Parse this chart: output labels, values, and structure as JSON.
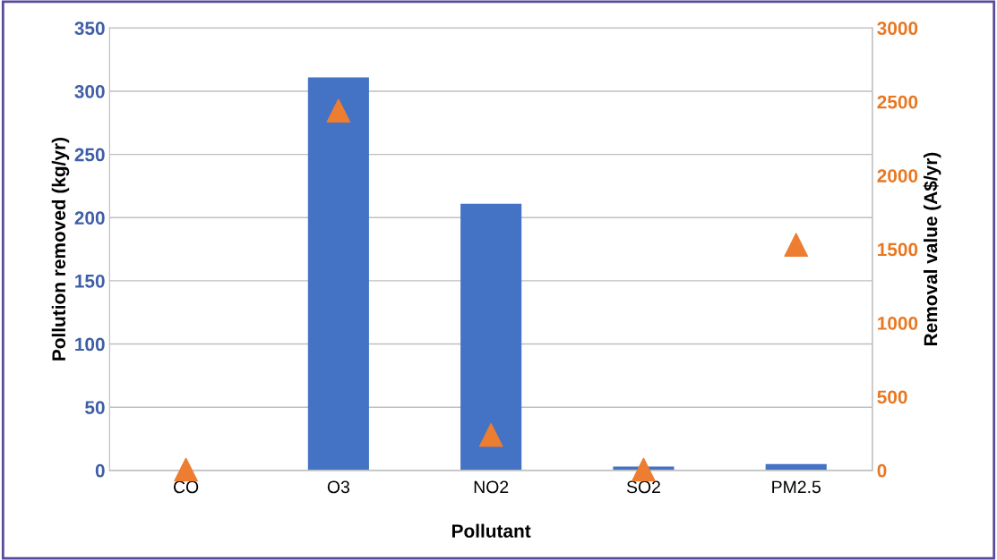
{
  "chart_data": {
    "type": "bar",
    "xlabel": "Pollutant",
    "ylabel": "Pollution removed (kg/yr)",
    "y2label": "Removal value (A$/yr)",
    "categories": [
      "CO",
      "O3",
      "NO2",
      "SO2",
      "PM2.5"
    ],
    "series": [
      {
        "color": "#4472c4",
        "values": [
          0,
          311,
          211,
          3,
          5
        ]
      },
      {
        "type": "scatter",
        "axis": "y2",
        "color": "#ed7d31",
        "marker": "triangle",
        "values": [
          5,
          2440,
          240,
          5,
          1530
        ]
      }
    ],
    "ylim": [
      0,
      350
    ],
    "yticks": [
      0,
      50,
      100,
      150,
      200,
      250,
      300,
      350
    ],
    "y2lim": [
      0,
      3000
    ],
    "y2ticks": [
      0,
      500,
      1000,
      1500,
      2000,
      2500,
      3000
    ],
    "grid": "y",
    "legend": false
  }
}
